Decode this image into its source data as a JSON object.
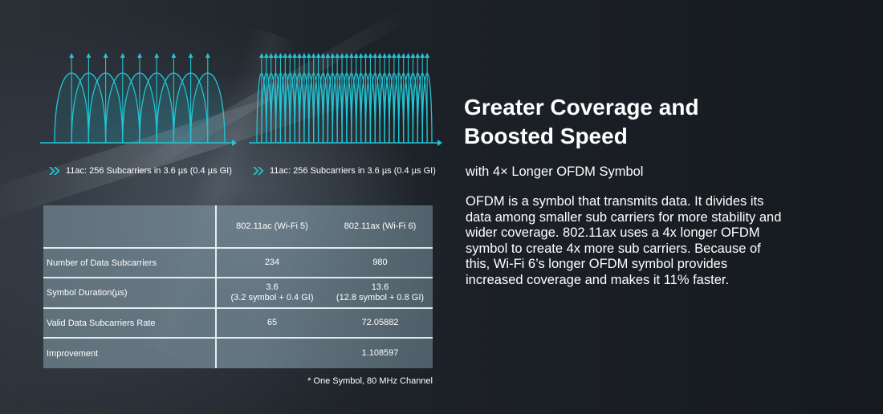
{
  "diagrams": [
    {
      "carriers": 9,
      "color": "#22c4d4",
      "caption": "11ac: 256 Subcarriers in 3.6 µs (0.4 µs GI)"
    },
    {
      "carriers": 36,
      "color": "#22c4d4",
      "caption": "11ac: 256 Subcarriers in 3.6 µs (0.4 µs GI)"
    }
  ],
  "chevron_icon": "double-chevron-right-icon",
  "table": {
    "headers": [
      "",
      "802.11ac (Wi-Fi 5)",
      "802.11ax (Wi-Fi 6)"
    ],
    "rows": [
      {
        "label": "Number of Data Subcarriers",
        "ac": [
          "234"
        ],
        "ax": [
          "980"
        ]
      },
      {
        "label": "Symbol Duration(µs)",
        "ac": [
          "3.6",
          "(3.2 symbol + 0.4 GI)"
        ],
        "ax": [
          "13.6",
          "(12.8 symbol + 0.8 GI)"
        ]
      },
      {
        "label": "Valid Data Subcarriers Rate",
        "ac": [
          "65"
        ],
        "ax": [
          "72.05882"
        ]
      },
      {
        "label": "Improvement",
        "ac": [
          ""
        ],
        "ax": [
          "1.108597"
        ]
      }
    ],
    "footnote": "* One Symbol, 80 MHz Channel"
  },
  "heading": {
    "title_line1": "Greater Coverage and",
    "title_line2": "Boosted Speed",
    "subtitle": "with 4× Longer OFDM Symbol",
    "body": "OFDM is a symbol that transmits data. It divides its data among smaller sub carriers for more stability and wider coverage. 802.11ax uses a 4x longer OFDM symbol to create 4x more sub carriers. Because of this, Wi-Fi 6’s longer OFDM symbol provides increased coverage and makes it 11% faster."
  }
}
